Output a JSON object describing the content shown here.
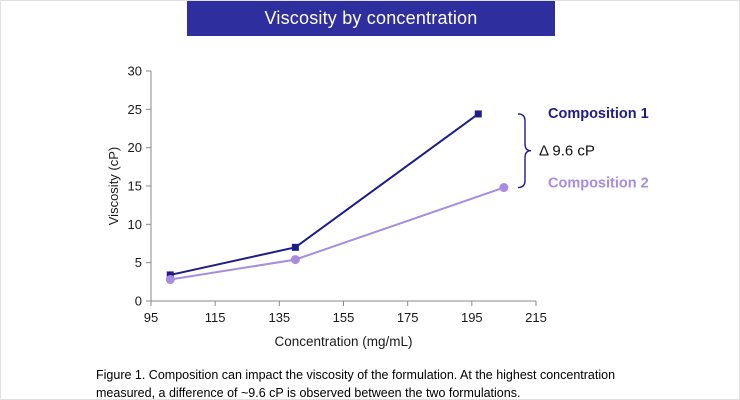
{
  "header": {
    "title": "Viscosity by concentration",
    "bg_color": "#2e2e9f",
    "text_color": "#ffffff"
  },
  "chart_data": {
    "type": "line",
    "title": "Viscosity by concentration",
    "xlabel": "Concentration (mg/mL)",
    "ylabel": "Viscosity (cP)",
    "xlim": [
      95,
      215
    ],
    "ylim": [
      0,
      30
    ],
    "xticks": [
      95,
      115,
      135,
      155,
      175,
      195,
      215
    ],
    "yticks": [
      0,
      5,
      10,
      15,
      20,
      25,
      30
    ],
    "grid": false,
    "legend_position": "right of last data points",
    "series": [
      {
        "name": "Composition 1",
        "color": "#1c1c8a",
        "marker": "square",
        "x": [
          101,
          140,
          197
        ],
        "y": [
          3.4,
          7.0,
          24.4
        ]
      },
      {
        "name": "Composition 2",
        "color": "#a78ce0",
        "marker": "circle",
        "x": [
          101,
          140,
          205
        ],
        "y": [
          2.8,
          5.4,
          14.8
        ]
      }
    ],
    "annotation": {
      "label": "Δ 9.6 cP",
      "description": "bracket between the final points of the two series"
    }
  },
  "caption": {
    "line1": "Figure 1. Composition can impact the viscosity of the formulation. At the highest concentration",
    "line2": "measured, a difference of ~9.6 cP is observed between the two formulations."
  }
}
